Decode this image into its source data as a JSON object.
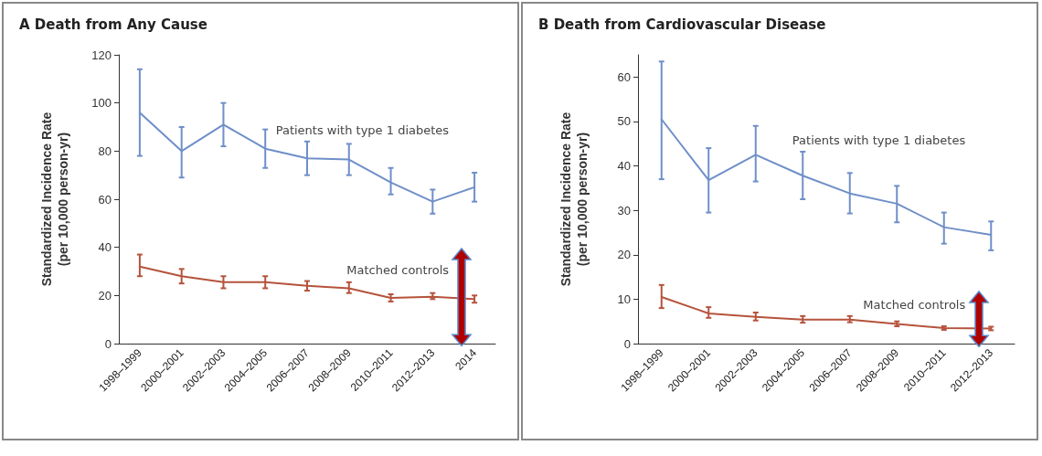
{
  "chart_data": [
    {
      "type": "line",
      "title": "A Death from Any Cause",
      "ylabel": "Standardized Incidence Rate\n(per 10,000 person-yr)",
      "categories": [
        "1998–1999",
        "2000–2001",
        "2002–2003",
        "2004–2005",
        "2006–2007",
        "2008–2009",
        "2010–2011",
        "2012–2013",
        "2014"
      ],
      "series": [
        {
          "name": "Patients with type 1 diabetes",
          "color": "#6f8fc8",
          "values": [
            96,
            80,
            91,
            81,
            77,
            76.5,
            67,
            59,
            65
          ],
          "errors": [
            [
              78,
              114
            ],
            [
              69,
              90
            ],
            [
              82,
              100
            ],
            [
              73,
              89
            ],
            [
              70,
              84
            ],
            [
              70,
              83
            ],
            [
              62,
              73
            ],
            [
              54,
              64
            ],
            [
              59,
              71
            ]
          ]
        },
        {
          "name": "Matched controls",
          "color": "#b5533c",
          "values": [
            32,
            28,
            25.5,
            25.5,
            24,
            23,
            19,
            19.5,
            18.5
          ],
          "errors": [
            [
              28,
              37
            ],
            [
              25,
              31
            ],
            [
              23,
              28
            ],
            [
              23,
              28
            ],
            [
              22,
              26
            ],
            [
              21,
              25.5
            ],
            [
              17.5,
              20.5
            ],
            [
              18.5,
              21
            ],
            [
              17,
              20
            ]
          ]
        }
      ],
      "ylim": [
        0,
        120
      ],
      "yticks": [
        0,
        20,
        40,
        60,
        80,
        100,
        120
      ],
      "grid": false,
      "legend": false,
      "line_style": "solid"
    },
    {
      "type": "line",
      "title": "B Death from Cardiovascular Disease",
      "ylabel": "Standardized Incidence Rate\n(per 10,000 person-yr)",
      "categories": [
        "1998–1999",
        "2000–2001",
        "2002–2003",
        "2004–2005",
        "2006–2007",
        "2008–2009",
        "2010–2011",
        "2012–2013"
      ],
      "series": [
        {
          "name": "Patients with type 1 diabetes",
          "color": "#6f8fc8",
          "values": [
            50.5,
            36.8,
            42.5,
            37.8,
            33.8,
            31.5,
            26.2,
            24.5
          ],
          "errors": [
            [
              37,
              63.5
            ],
            [
              29.5,
              44
            ],
            [
              36.5,
              49
            ],
            [
              32.5,
              43.2
            ],
            [
              29.3,
              38.4
            ],
            [
              27.3,
              35.5
            ],
            [
              22.5,
              29.5
            ],
            [
              21,
              27.5
            ]
          ]
        },
        {
          "name": "Matched controls",
          "color": "#b5533c",
          "values": [
            10.5,
            6.8,
            6,
            5.4,
            5.4,
            4.4,
            3.5,
            3.4
          ],
          "errors": [
            [
              8,
              13.2
            ],
            [
              5.8,
              8.2
            ],
            [
              5.2,
              7
            ],
            [
              4.7,
              6.2
            ],
            [
              4.8,
              6.2
            ],
            [
              3.9,
              5
            ],
            [
              3.1,
              3.9
            ],
            [
              3,
              3.8
            ]
          ]
        }
      ],
      "ylim": [
        0,
        65
      ],
      "yticks": [
        0,
        10,
        20,
        30,
        40,
        50,
        60
      ],
      "grid": false,
      "legend": false,
      "line_style": "solid"
    }
  ]
}
